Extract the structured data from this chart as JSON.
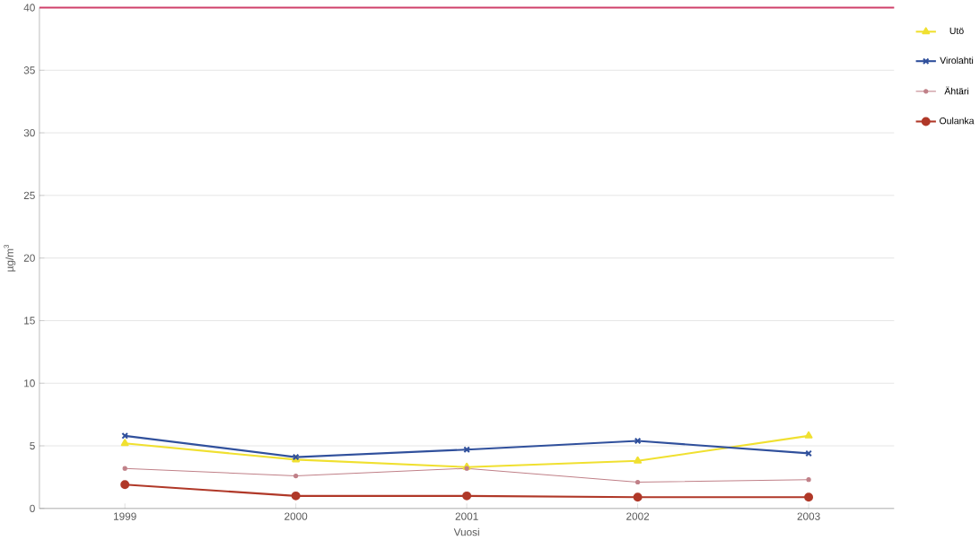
{
  "chart_data": {
    "type": "line",
    "xlabel": "Vuosi",
    "ylabel": "µg/m$^{3}$",
    "categories": [
      "1999",
      "2000",
      "2001",
      "2002",
      "2003"
    ],
    "series": [
      {
        "name": "Utö",
        "color": "#f0e030",
        "marker": "triangle",
        "values": [
          5.2,
          3.9,
          3.3,
          3.8,
          5.8
        ]
      },
      {
        "name": "Virolahti",
        "color": "#30509c",
        "marker": "cross",
        "values": [
          5.8,
          4.1,
          4.7,
          5.4,
          4.4
        ]
      },
      {
        "name": "Ähtäri",
        "color": "#c08088",
        "marker": "circle",
        "values": [
          3.2,
          2.6,
          3.2,
          2.1,
          2.3
        ]
      },
      {
        "name": "Oulanka",
        "color": "#b03828",
        "marker": "circle",
        "values": [
          1.9,
          1.0,
          1.0,
          0.9,
          0.9
        ]
      }
    ],
    "ylim": [
      0,
      40
    ],
    "yticks": [
      0,
      5,
      10,
      15,
      20,
      25,
      30,
      35,
      40
    ],
    "ref_lines": [
      {
        "axis": "y",
        "value": 40,
        "color": "#d0406a"
      }
    ],
    "grid": "y",
    "legend": "right"
  }
}
